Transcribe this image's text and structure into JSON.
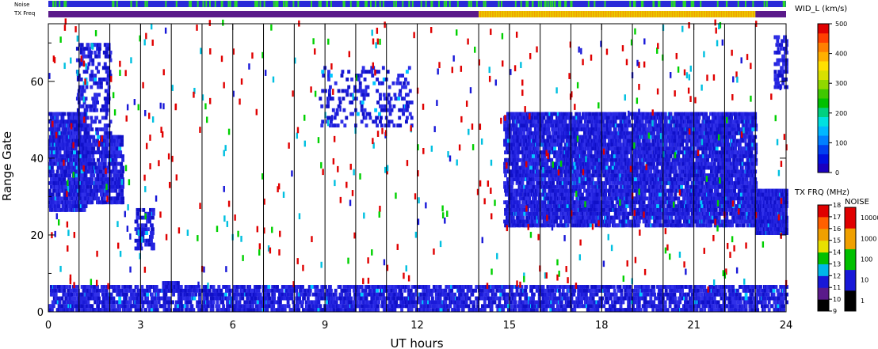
{
  "chart_data": {
    "type": "heatmap",
    "xlabel": "UT hours",
    "ylabel": "Range Gate",
    "xlim": [
      0,
      24
    ],
    "ylim": [
      0,
      75
    ],
    "x_ticks": [
      "0",
      "3",
      "6",
      "9",
      "12",
      "15",
      "18",
      "21",
      "24"
    ],
    "y_ticks": [
      "0",
      "20",
      "40",
      "60"
    ],
    "vertical_scan_lines_hours": [
      1,
      2,
      3,
      4,
      5,
      6,
      7,
      8,
      9,
      10,
      11,
      12,
      14,
      15,
      16,
      17,
      18,
      19,
      20,
      21,
      22,
      23
    ],
    "top_bars": [
      {
        "label": "Noise",
        "segments": [
          {
            "from": 0,
            "to": 24,
            "color": "#2a2ad8",
            "speckle": "#2bd82b"
          }
        ]
      },
      {
        "label": "TX Freq",
        "segments": [
          {
            "from": 0,
            "to": 14,
            "color": "#5a1a8a"
          },
          {
            "from": 14,
            "to": 23,
            "color": "#f0a000"
          },
          {
            "from": 23,
            "to": 24,
            "color": "#5a1a8a"
          }
        ]
      }
    ],
    "colorbars": [
      {
        "title": "WID_L (km/s)",
        "ticks": [
          "0",
          "100",
          "200",
          "300",
          "400",
          "500"
        ]
      },
      {
        "title": "TX FRQ (MHz)",
        "ticks": [
          "9",
          "10",
          "11",
          "12",
          "13",
          "14",
          "15",
          "16",
          "17",
          "18"
        ]
      },
      {
        "title": "NOISE",
        "ticks": [
          "1",
          "10",
          "100",
          "1000",
          "10000"
        ]
      }
    ],
    "echo_regions": [
      {
        "name": "early-band-1",
        "t": [
          0.0,
          1.2
        ],
        "gate": [
          26,
          52
        ],
        "density": 0.55
      },
      {
        "name": "early-band-2",
        "t": [
          1.0,
          2.4
        ],
        "gate": [
          28,
          46
        ],
        "density": 0.45
      },
      {
        "name": "early-diagonal",
        "t": [
          0.9,
          2.0
        ],
        "gate": [
          46,
          70
        ],
        "density": 0.18
      },
      {
        "name": "patch-3h",
        "t": [
          2.8,
          3.4
        ],
        "gate": [
          16,
          27
        ],
        "density": 0.3
      },
      {
        "name": "patch-4h",
        "t": [
          3.7,
          4.2
        ],
        "gate": [
          5,
          8
        ],
        "density": 0.8
      },
      {
        "name": "cluster-10h",
        "t": [
          8.8,
          11.8
        ],
        "gate": [
          48,
          64
        ],
        "density": 0.12
      },
      {
        "name": "afternoon-band",
        "t": [
          14.8,
          23.0
        ],
        "gate": [
          22,
          52
        ],
        "density": 0.55
      },
      {
        "name": "late-block",
        "t": [
          23.0,
          24.0
        ],
        "gate": [
          20,
          32
        ],
        "density": 0.85
      },
      {
        "name": "late-upper",
        "t": [
          23.6,
          24.0
        ],
        "gate": [
          58,
          72
        ],
        "density": 0.3
      },
      {
        "name": "ground-scatter",
        "t": [
          0,
          24
        ],
        "gate": [
          0,
          7
        ],
        "density": 0.4
      }
    ]
  }
}
